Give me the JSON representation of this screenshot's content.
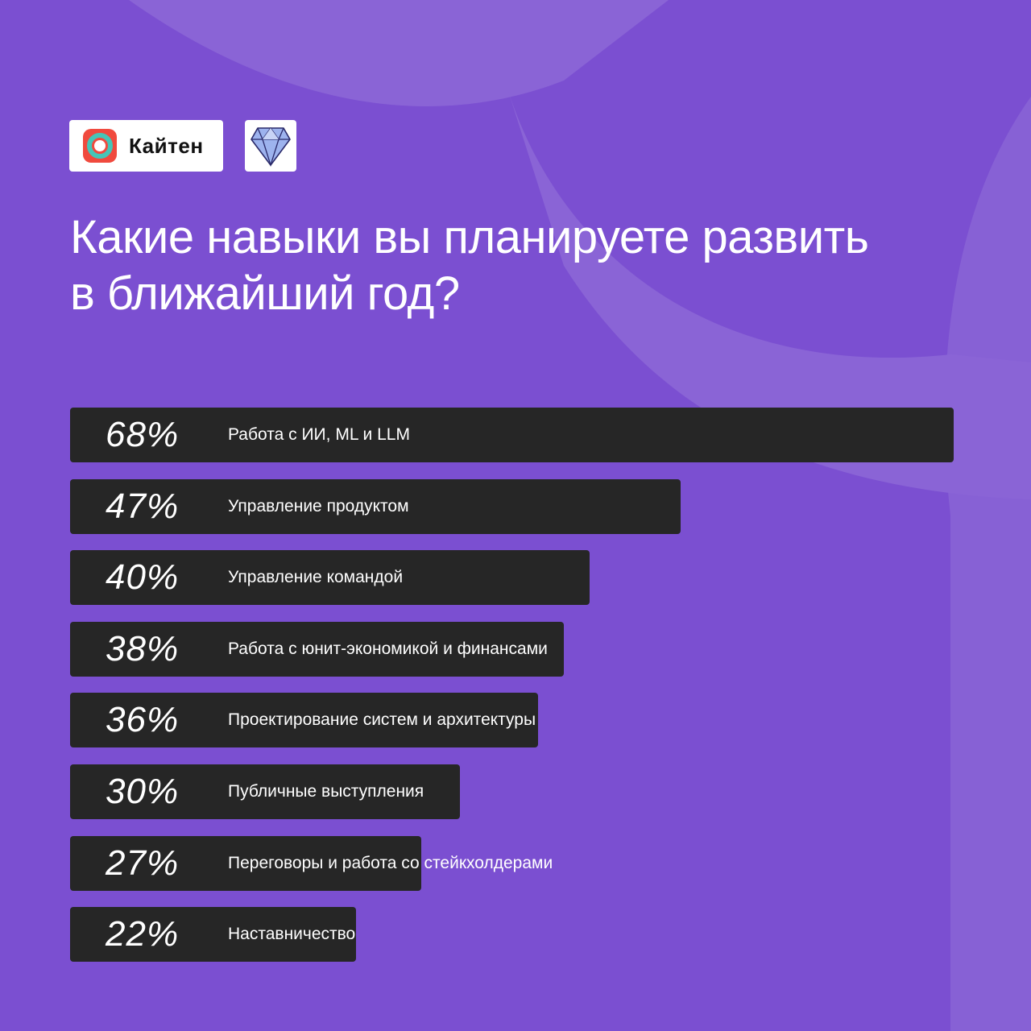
{
  "brand": {
    "logo_text": "Кайтен",
    "icons": [
      "kaiten-logo-icon",
      "diamond-icon"
    ]
  },
  "title": "Какие навыки вы планируете развить в ближайший год?",
  "colors": {
    "background": "#7b4fd1",
    "background_shape": "#8a64d6",
    "bar": "#262626",
    "text": "#ffffff",
    "logo_red": "#f04a3e",
    "logo_teal": "#45c6b8",
    "gem": "#8fa8e8"
  },
  "chart_data": {
    "type": "bar",
    "orientation": "horizontal",
    "title": "Какие навыки вы планируете развить в ближайший год?",
    "categories": [
      "Работа с ИИ, ML и LLM",
      "Управление продуктом",
      "Управление командой",
      "Работа с юнит-экономикой и финансами",
      "Проектирование систем и архитектуры",
      "Публичные выступления",
      "Переговоры и работа со стейкхолдерами",
      "Наставничество"
    ],
    "values": [
      68,
      47,
      40,
      38,
      36,
      30,
      27,
      22
    ],
    "value_labels": [
      "68%",
      "47%",
      "40%",
      "38%",
      "36%",
      "30%",
      "27%",
      "22%"
    ],
    "unit": "%",
    "grid": false,
    "legend": "none"
  }
}
